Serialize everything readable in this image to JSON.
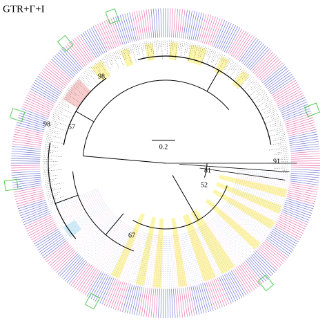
{
  "title": "GTR+Γ+I",
  "scale_bar": {
    "label": "0.2"
  },
  "node_labels": [
    "98",
    "98",
    "57",
    "91",
    "81",
    "52",
    "67"
  ]
}
